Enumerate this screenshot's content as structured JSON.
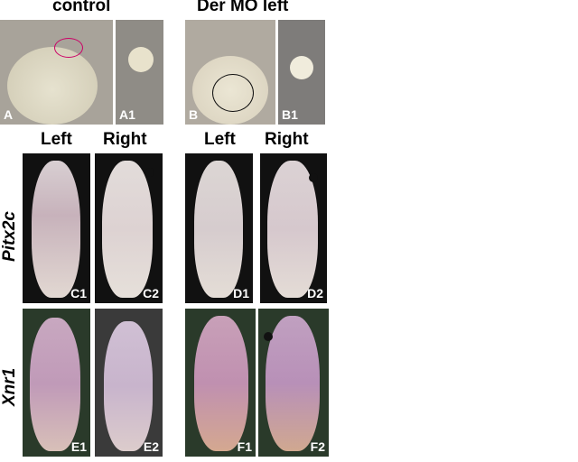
{
  "headers": {
    "control": "control",
    "der_mo_left": "Der MO left"
  },
  "columns": {
    "left1": "Left",
    "right1": "Right",
    "left2": "Left",
    "right2": "Right"
  },
  "rows": {
    "pitx2c": "Pitx2c",
    "xnr1": "Xnr1"
  },
  "panels": {
    "A": "A",
    "A1": "A1",
    "B": "B",
    "B1": "B1",
    "C1": "C1",
    "C2": "C2",
    "D1": "D1",
    "D2": "D2",
    "E1": "E1",
    "E2": "E2",
    "F1": "F1",
    "F2": "F2"
  }
}
